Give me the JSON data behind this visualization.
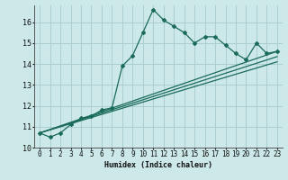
{
  "xlabel": "Humidex (Indice chaleur)",
  "background_color": "#cce8e8",
  "grid_color": "#aacece",
  "line_color": "#1a6b5a",
  "xlim": [
    -0.5,
    23.5
  ],
  "ylim": [
    10,
    16.8
  ],
  "yticks": [
    10,
    11,
    12,
    13,
    14,
    15,
    16
  ],
  "xticks": [
    0,
    1,
    2,
    3,
    4,
    5,
    6,
    7,
    8,
    9,
    10,
    11,
    12,
    13,
    14,
    15,
    16,
    17,
    18,
    19,
    20,
    21,
    22,
    23
  ],
  "main_y": [
    10.7,
    10.5,
    10.7,
    11.1,
    11.4,
    11.5,
    11.8,
    11.9,
    13.9,
    14.4,
    15.5,
    16.6,
    16.1,
    15.8,
    15.5,
    15.0,
    15.3,
    15.3,
    14.9,
    14.5,
    14.2,
    15.0,
    14.5,
    14.6
  ],
  "trend_lines": [
    {
      "x0": 0,
      "y0": 10.7,
      "x1": 23,
      "y1": 14.6
    },
    {
      "x0": 0,
      "y0": 10.7,
      "x1": 23,
      "y1": 14.35
    },
    {
      "x0": 0,
      "y0": 10.7,
      "x1": 23,
      "y1": 14.1
    }
  ]
}
